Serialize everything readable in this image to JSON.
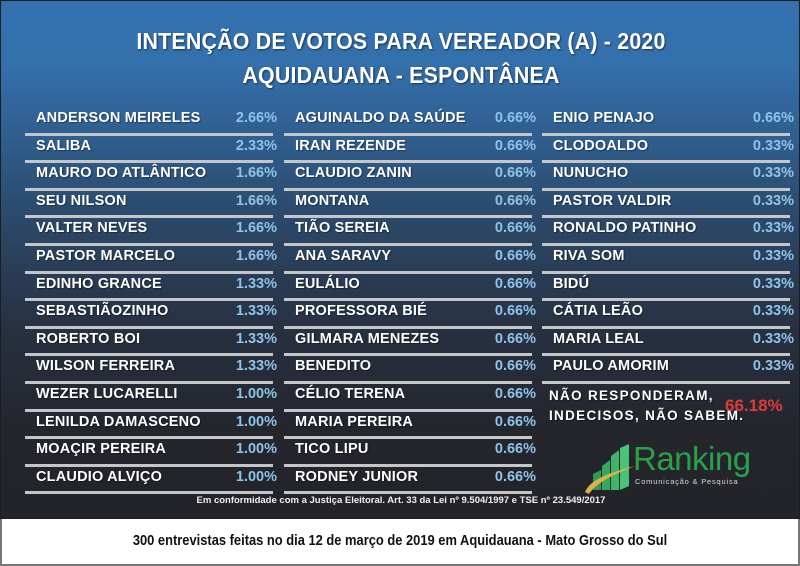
{
  "header": {
    "title_line1": "INTENÇÃO DE VOTOS PARA VEREADOR (A) - 2020",
    "title_line2": "AQUIDAUANA - ESPONTÂNEA"
  },
  "columns": [
    [
      {
        "name": "ANDERSON MEIRELES",
        "pct": "2.66%"
      },
      {
        "name": "SALIBA",
        "pct": "2.33%"
      },
      {
        "name": "MAURO DO ATLÂNTICO",
        "pct": "1.66%"
      },
      {
        "name": "SEU NILSON",
        "pct": "1.66%"
      },
      {
        "name": "VALTER NEVES",
        "pct": "1.66%"
      },
      {
        "name": "PASTOR MARCELO",
        "pct": "1.66%"
      },
      {
        "name": "EDINHO GRANCE",
        "pct": "1.33%"
      },
      {
        "name": "SEBASTIÃOZINHO",
        "pct": "1.33%"
      },
      {
        "name": "ROBERTO BOI",
        "pct": "1.33%"
      },
      {
        "name": "WILSON FERREIRA",
        "pct": "1.33%"
      },
      {
        "name": "WEZER LUCARELLI",
        "pct": "1.00%"
      },
      {
        "name": "LENILDA DAMASCENO",
        "pct": "1.00%"
      },
      {
        "name": "MOAÇIR PEREIRA",
        "pct": "1.00%"
      },
      {
        "name": "CLAUDIO ALVIÇO",
        "pct": "1.00%"
      }
    ],
    [
      {
        "name": "AGUINALDO DA SAÚDE",
        "pct": "0.66%"
      },
      {
        "name": "IRAN REZENDE",
        "pct": "0.66%"
      },
      {
        "name": "CLAUDIO ZANIN",
        "pct": "0.66%"
      },
      {
        "name": "MONTANA",
        "pct": "0.66%"
      },
      {
        "name": "TIÃO SEREIA",
        "pct": "0.66%"
      },
      {
        "name": "ANA SARAVY",
        "pct": "0.66%"
      },
      {
        "name": "EULÁLIO",
        "pct": "0.66%"
      },
      {
        "name": "PROFESSORA BIÉ",
        "pct": "0.66%"
      },
      {
        "name": "GILMARA MENEZES",
        "pct": "0.66%"
      },
      {
        "name": "BENEDITO",
        "pct": "0.66%"
      },
      {
        "name": "CÉLIO TERENA",
        "pct": "0.66%"
      },
      {
        "name": "MARIA PEREIRA",
        "pct": "0.66%"
      },
      {
        "name": "TICO LIPU",
        "pct": "0.66%"
      },
      {
        "name": "RODNEY JUNIOR",
        "pct": "0.66%"
      }
    ],
    [
      {
        "name": "ENIO PENAJO",
        "pct": "0.66%"
      },
      {
        "name": "CLODOALDO",
        "pct": "0.33%"
      },
      {
        "name": "NUNUCHO",
        "pct": "0.33%"
      },
      {
        "name": "PASTOR VALDIR",
        "pct": "0.33%"
      },
      {
        "name": "RONALDO PATINHO",
        "pct": "0.33%"
      },
      {
        "name": "RIVA SOM",
        "pct": "0.33%"
      },
      {
        "name": "BIDÚ",
        "pct": "0.33%"
      },
      {
        "name": "CÁTIA LEÃO",
        "pct": "0.33%"
      },
      {
        "name": "MARIA LEAL",
        "pct": "0.33%"
      },
      {
        "name": "PAULO AMORIM",
        "pct": "0.33%"
      }
    ]
  ],
  "undecided": {
    "line1": "NÃO RESPONDERAM,",
    "line2": "INDECISOS, NÃO SABEM.",
    "pct": "66.18%"
  },
  "logo": {
    "brand": "Ranking",
    "tagline": "Comunicação & Pesquisa"
  },
  "legal_note": "Em conformidade com a Justiça Eleitoral. Art. 33 da Lei nº 9.504/1997 e TSE nº 23.549/2017",
  "footer": "300 entrevistas feitas no dia 12 de março de 2019 em Aquidauana - Mato Grosso do Sul",
  "colors": {
    "background_top": "#3471ae",
    "background_bottom": "#232429",
    "percent": "#8ec3ea",
    "undecided_percent": "#e03a36",
    "logo_green": "#2aa04a",
    "divider": "#c4c6ca"
  },
  "chart_data": {
    "type": "table",
    "title": "INTENÇÃO DE VOTOS PARA VEREADOR (A) - 2020",
    "subtitle": "AQUIDAUANA - ESPONTÂNEA",
    "categories": [
      "ANDERSON MEIRELES",
      "SALIBA",
      "MAURO DO ATLÂNTICO",
      "SEU NILSON",
      "VALTER NEVES",
      "PASTOR MARCELO",
      "EDINHO GRANCE",
      "SEBASTIÃOZINHO",
      "ROBERTO BOI",
      "WILSON FERREIRA",
      "WEZER LUCARELLI",
      "LENILDA DAMASCENO",
      "MOAÇIR PEREIRA",
      "CLAUDIO ALVIÇO",
      "AGUINALDO DA SAÚDE",
      "IRAN REZENDE",
      "CLAUDIO ZANIN",
      "MONTANA",
      "TIÃO SEREIA",
      "ANA SARAVY",
      "EULÁLIO",
      "PROFESSORA BIÉ",
      "GILMARA MENEZES",
      "BENEDITO",
      "CÉLIO TERENA",
      "MARIA PEREIRA",
      "TICO LIPU",
      "RODNEY JUNIOR",
      "ENIO PENAJO",
      "CLODOALDO",
      "NUNUCHO",
      "PASTOR VALDIR",
      "RONALDO PATINHO",
      "RIVA SOM",
      "BIDÚ",
      "CÁTIA LEÃO",
      "MARIA LEAL",
      "PAULO AMORIM",
      "NÃO RESPONDERAM, INDECISOS, NÃO SABEM."
    ],
    "values": [
      2.66,
      2.33,
      1.66,
      1.66,
      1.66,
      1.66,
      1.33,
      1.33,
      1.33,
      1.33,
      1.0,
      1.0,
      1.0,
      1.0,
      0.66,
      0.66,
      0.66,
      0.66,
      0.66,
      0.66,
      0.66,
      0.66,
      0.66,
      0.66,
      0.66,
      0.66,
      0.66,
      0.66,
      0.66,
      0.33,
      0.33,
      0.33,
      0.33,
      0.33,
      0.33,
      0.33,
      0.33,
      0.33,
      66.18
    ],
    "unit": "%",
    "note": "300 entrevistas feitas no dia 12 de março de 2019 em Aquidauana - Mato Grosso do Sul"
  }
}
